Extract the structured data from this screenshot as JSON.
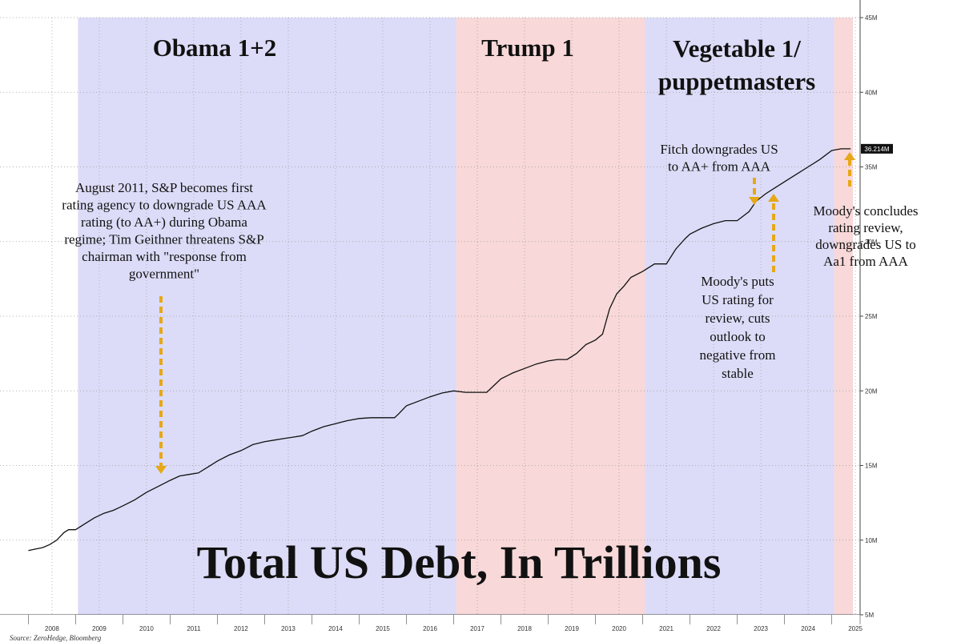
{
  "chart_data": {
    "type": "line",
    "title": "Total US Debt, In Trillions",
    "source": "Source: ZeroHedge, Bloomberg",
    "ylim": [
      5,
      45
    ],
    "y_ticks": [
      "5M",
      "10M",
      "15M",
      "20M",
      "25M",
      "30M",
      "35M",
      "40M",
      "45M"
    ],
    "x_ticks": [
      "2008",
      "2009",
      "2010",
      "2011",
      "2012",
      "2013",
      "2014",
      "2015",
      "2016",
      "2017",
      "2018",
      "2019",
      "2020",
      "2021",
      "2022",
      "2023",
      "2024",
      "2025"
    ],
    "last_value_label": "36.214M",
    "grid": true,
    "eras": [
      {
        "label": "Obama 1+2",
        "start": 2009.05,
        "end": 2017.05,
        "color": "#dcdcf8"
      },
      {
        "label": "Trump 1",
        "start": 2017.05,
        "end": 2021.05,
        "color": "#f8d8d8"
      },
      {
        "label_lines": [
          "Vegetable 1/",
          "puppetmasters"
        ],
        "start": 2021.05,
        "end": 2025.05,
        "color": "#dcdcf8"
      },
      {
        "label": "",
        "start": 2025.05,
        "end": 2025.45,
        "color": "#f8d8d8"
      }
    ],
    "series": [
      {
        "x": [
          2008.0,
          2008.15,
          2008.3,
          2008.45,
          2008.6,
          2008.75,
          2008.85,
          2009.0,
          2009.2,
          2009.4,
          2009.6,
          2009.8,
          2010.0,
          2010.25,
          2010.5,
          2010.75,
          2011.0,
          2011.2,
          2011.4,
          2011.6,
          2011.8,
          2012.0,
          2012.25,
          2012.5,
          2012.75,
          2013.0,
          2013.2,
          2013.4,
          2013.6,
          2013.8,
          2014.0,
          2014.25,
          2014.5,
          2014.75,
          2015.0,
          2015.25,
          2015.5,
          2015.75,
          2015.85,
          2016.0,
          2016.25,
          2016.5,
          2016.75,
          2017.0,
          2017.25,
          2017.5,
          2017.7,
          2017.9,
          2018.0,
          2018.25,
          2018.5,
          2018.75,
          2019.0,
          2019.2,
          2019.4,
          2019.6,
          2019.8,
          2020.0,
          2020.15,
          2020.3,
          2020.45,
          2020.6,
          2020.75,
          2021.0,
          2021.25,
          2021.5,
          2021.7,
          2021.9,
          2022.0,
          2022.25,
          2022.5,
          2022.75,
          2023.0,
          2023.25,
          2023.4,
          2023.6,
          2023.8,
          2024.0,
          2024.25,
          2024.5,
          2024.75,
          2025.0,
          2025.2,
          2025.4
        ],
        "y": [
          9.3,
          9.4,
          9.5,
          9.7,
          10.0,
          10.5,
          10.7,
          10.7,
          11.1,
          11.5,
          11.8,
          12.0,
          12.3,
          12.7,
          13.2,
          13.6,
          14.0,
          14.3,
          14.4,
          14.5,
          14.9,
          15.3,
          15.7,
          16.0,
          16.4,
          16.6,
          16.7,
          16.8,
          16.9,
          17.0,
          17.3,
          17.6,
          17.8,
          18.0,
          18.15,
          18.2,
          18.2,
          18.2,
          18.5,
          19.0,
          19.3,
          19.6,
          19.85,
          20.0,
          19.9,
          19.9,
          19.9,
          20.5,
          20.8,
          21.2,
          21.5,
          21.8,
          22.0,
          22.1,
          22.1,
          22.5,
          23.1,
          23.4,
          23.8,
          25.5,
          26.5,
          27.0,
          27.6,
          28.0,
          28.5,
          28.5,
          29.5,
          30.2,
          30.5,
          30.9,
          31.2,
          31.4,
          31.4,
          32.0,
          32.7,
          33.2,
          33.6,
          34.0,
          34.5,
          35.0,
          35.5,
          36.1,
          36.214,
          36.214
        ]
      }
    ],
    "annotations": [
      {
        "name": "sp-2011",
        "lines": [
          "August 2011, S&P becomes first",
          "rating agency to downgrade US AAA",
          "rating (to AA+) during Obama",
          "regime; Tim Geithner threatens S&P",
          "chairman with \"response from",
          "government\""
        ]
      },
      {
        "name": "fitch-2023",
        "lines": [
          "Fitch downgrades US",
          "to AA+ from AAA"
        ]
      },
      {
        "name": "moodys-review",
        "lines": [
          "Moody's puts",
          "US rating for",
          "review, cuts",
          "outlook to",
          "negative from",
          "stable"
        ]
      },
      {
        "name": "moodys-conclude",
        "lines": [
          "Moody's concludes",
          "rating review,",
          "downgrades US to",
          "Aa1 from AAA"
        ]
      }
    ],
    "arrow_color": "#e6a817"
  }
}
